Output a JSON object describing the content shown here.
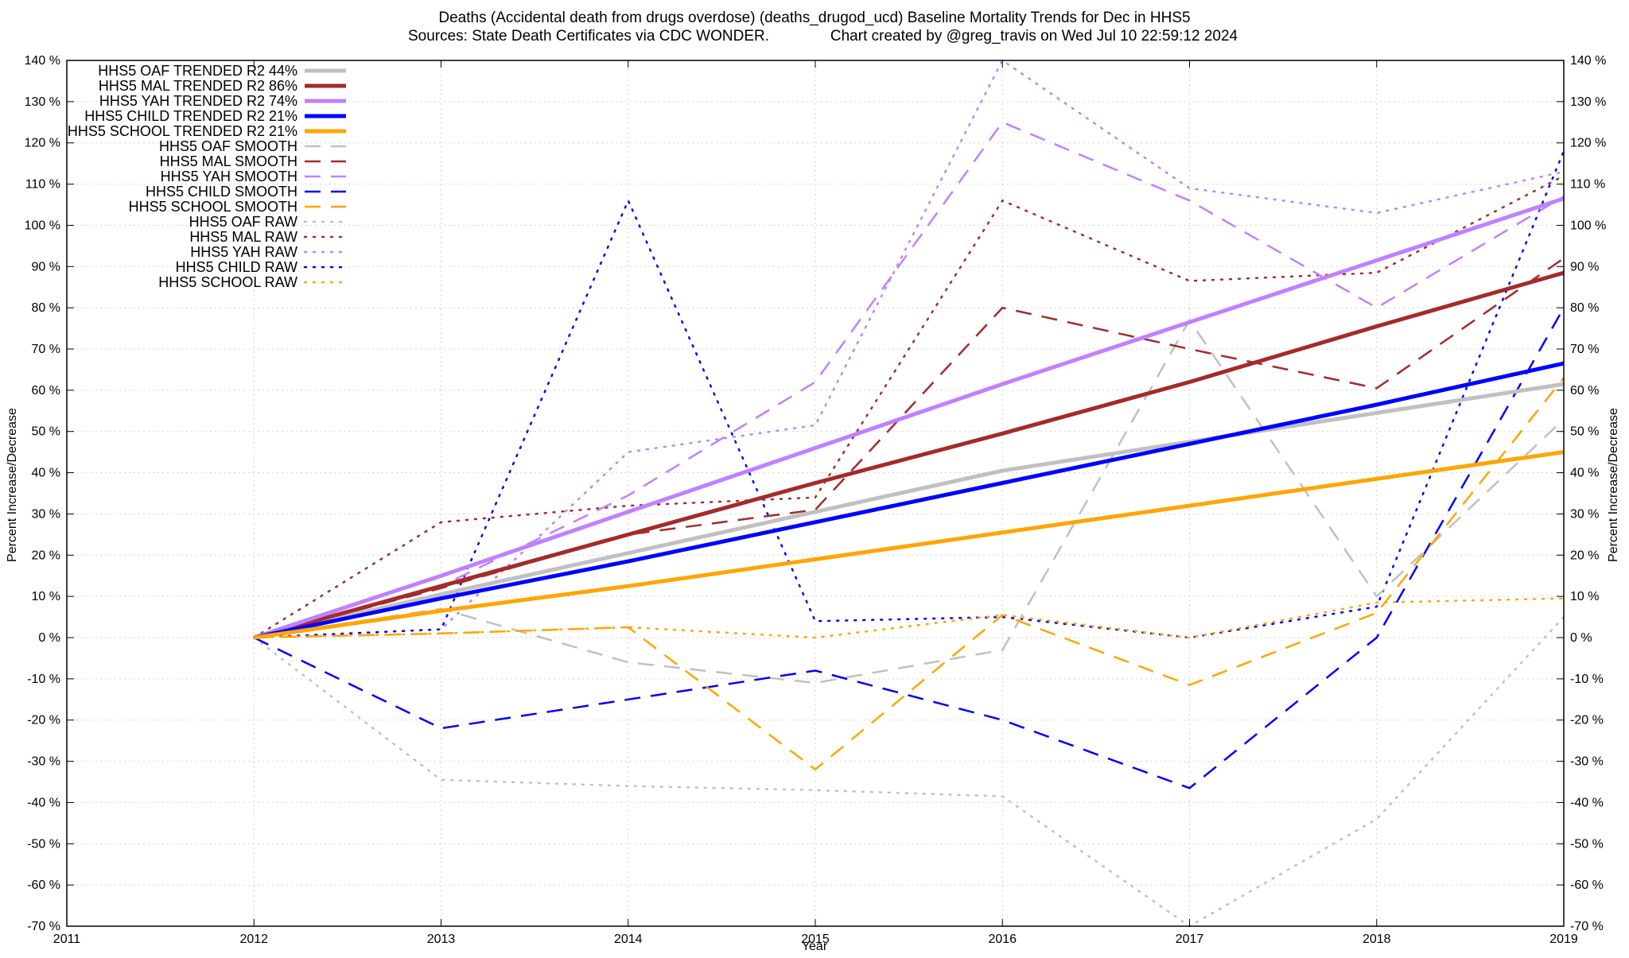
{
  "chart_data": {
    "type": "line",
    "title_line1": "Deaths (Accidental death from drugs overdose) (deaths_drugod_ucd)  Baseline Mortality Trends for Dec in HHS5",
    "title_line2_left": "Sources: State Death Certificates via CDC WONDER.",
    "title_line2_right": "Chart created by @greg_travis on Wed Jul 10 22:59:12 2024",
    "xlabel": "Year",
    "ylabel_left": "Percent Increase/Decrease",
    "ylabel_right": "Percent Increase/Decrease",
    "xlim": [
      2011,
      2019
    ],
    "ylim": [
      -70,
      140
    ],
    "x_ticks": [
      "2011",
      "2012",
      "2013",
      "2014",
      "2015",
      "2016",
      "2017",
      "2018",
      "2019"
    ],
    "y_ticks": [
      "140 %",
      "130 %",
      "120 %",
      "110 %",
      "100 %",
      "90 %",
      "80 %",
      "70 %",
      "60 %",
      "50 %",
      "40 %",
      "30 %",
      "20 %",
      "10 %",
      "0 %",
      "-10 %",
      "-20 %",
      "-30 %",
      "-40 %",
      "-50 %",
      "-60 %",
      "-70 %"
    ],
    "grid": true,
    "legend_position": "top-left",
    "x": [
      2012,
      2013,
      2014,
      2015,
      2016,
      2017,
      2018,
      2019
    ],
    "series": [
      {
        "name": "HHS5 OAF TRENDED R2  44%",
        "color": "#c0c0c0",
        "style": "solid",
        "width": 5,
        "values": [
          0,
          10.5,
          20.5,
          30.5,
          40.5,
          47.5,
          54.5,
          61.5
        ]
      },
      {
        "name": "HHS5 MAL TRENDED R2  86%",
        "color": "#a52a2a",
        "style": "solid",
        "width": 5,
        "values": [
          0,
          12.5,
          25,
          37.5,
          49.5,
          62,
          75.5,
          88.5
        ]
      },
      {
        "name": "HHS5 YAH TRENDED R2  74%",
        "color": "#c080ff",
        "style": "solid",
        "width": 5,
        "values": [
          0,
          15,
          30.5,
          46,
          61.5,
          76.5,
          91.5,
          106.5
        ]
      },
      {
        "name": "HHS5 CHILD TRENDED R2  21%",
        "color": "#0000ff",
        "style": "solid",
        "width": 5,
        "values": [
          0,
          9.5,
          18.5,
          28,
          37.5,
          47,
          56.5,
          66.5
        ]
      },
      {
        "name": "HHS5 SCHOOL TRENDED R2  21%",
        "color": "#ffa500",
        "style": "solid",
        "width": 5,
        "values": [
          0,
          6.5,
          12.5,
          19,
          25.5,
          32,
          38.5,
          45
        ]
      },
      {
        "name": "HHS5 OAF SMOOTH",
        "color": "#c0c0c0",
        "style": "dashed",
        "width": 2.5,
        "values": [
          0,
          7,
          -6,
          -11,
          -3,
          77,
          10,
          53
        ]
      },
      {
        "name": "HHS5 MAL SMOOTH",
        "color": "#a52a2a",
        "style": "dashed",
        "width": 2.5,
        "values": [
          0,
          12,
          25,
          31,
          80,
          70,
          60.5,
          92
        ]
      },
      {
        "name": "HHS5 YAH SMOOTH",
        "color": "#c080ff",
        "style": "dashed",
        "width": 2.5,
        "values": [
          0,
          12.5,
          34.5,
          62,
          125,
          106,
          80,
          107
        ]
      },
      {
        "name": "HHS5 CHILD SMOOTH",
        "color": "#0000ff",
        "style": "dashed",
        "width": 2.5,
        "values": [
          0,
          -22,
          -15,
          -8,
          -20,
          -36.5,
          0,
          80
        ]
      },
      {
        "name": "HHS5 SCHOOL SMOOTH",
        "color": "#ffa500",
        "style": "dashed",
        "width": 2.5,
        "values": [
          0,
          1,
          2.5,
          -32,
          5.5,
          -11.5,
          6,
          63
        ]
      },
      {
        "name": "HHS5 OAF RAW",
        "color": "#c0c0c0",
        "style": "dotted",
        "width": 2.5,
        "values": [
          0,
          -34.5,
          -36,
          -37,
          -38.5,
          -70,
          -44,
          5
        ]
      },
      {
        "name": "HHS5 MAL RAW",
        "color": "#a52a2a",
        "style": "dotted",
        "width": 2.5,
        "values": [
          0,
          28,
          32,
          34,
          106,
          86.5,
          88.5,
          112
        ]
      },
      {
        "name": "HHS5 YAH RAW",
        "color": "#c080ff",
        "style": "dotted",
        "width": 2.5,
        "values": [
          0,
          2,
          45,
          51.5,
          140,
          109,
          103,
          113
        ]
      },
      {
        "name": "HHS5 CHILD RAW",
        "color": "#0000ff",
        "style": "dotted",
        "width": 2.5,
        "values": [
          0,
          2,
          106,
          4,
          5,
          0,
          7.5,
          118
        ]
      },
      {
        "name": "HHS5 SCHOOL RAW",
        "color": "#ffa500",
        "style": "dotted",
        "width": 2.5,
        "values": [
          0,
          1,
          2.5,
          0,
          5.5,
          0,
          8.5,
          9.5
        ]
      }
    ]
  }
}
